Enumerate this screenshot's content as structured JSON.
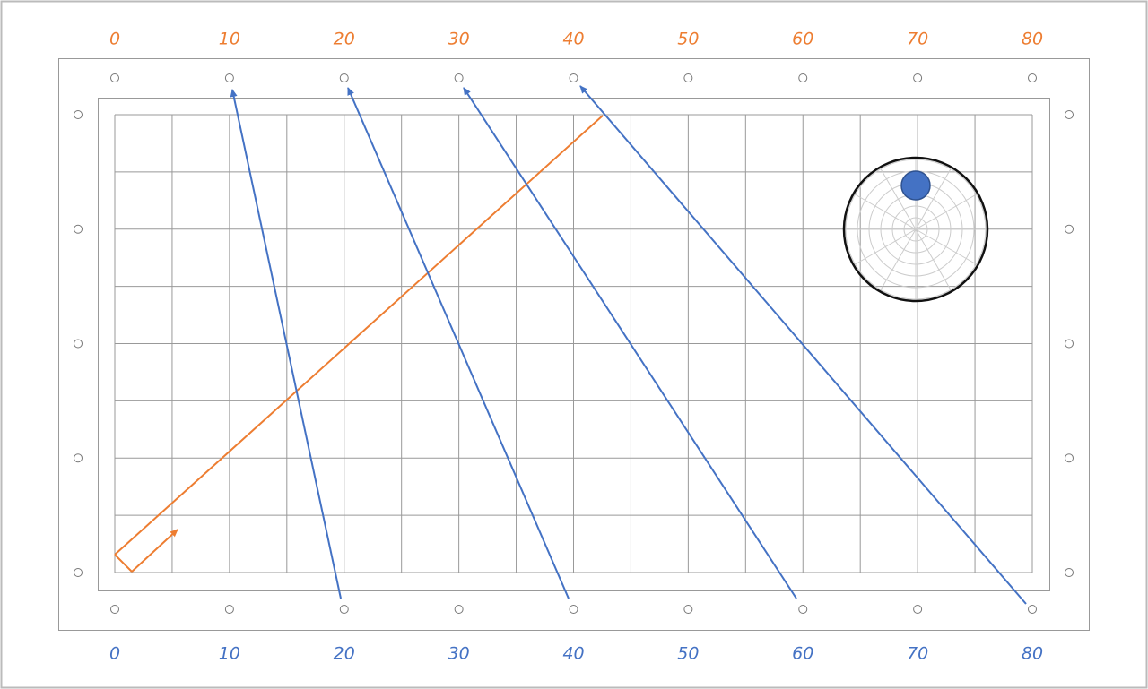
{
  "top_labels": [
    "0",
    "10",
    "20",
    "30",
    "40",
    "50",
    "60",
    "70",
    "80"
  ],
  "bottom_labels": [
    "0",
    "10",
    "20",
    "30",
    "40",
    "50",
    "60",
    "70",
    "80"
  ]
}
